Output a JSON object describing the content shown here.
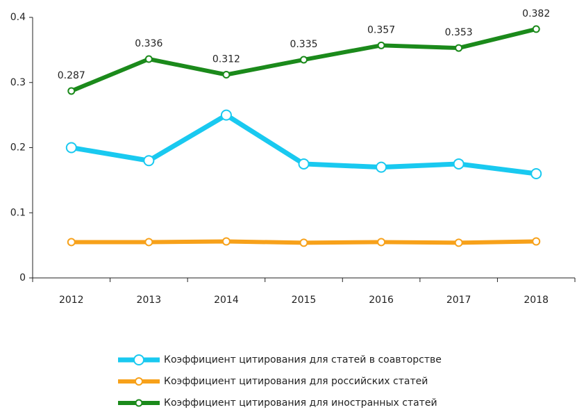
{
  "chart_data": {
    "type": "line",
    "categories": [
      "2012",
      "2013",
      "2014",
      "2015",
      "2016",
      "2017",
      "2018"
    ],
    "series": [
      {
        "name": "Коэффициент цитирования для статей в соавторстве",
        "color": "#19c9f0",
        "values": [
          0.2,
          0.18,
          0.25,
          0.175,
          0.17,
          0.175,
          0.16
        ]
      },
      {
        "name": "Коэффициент цитирования для российских статей",
        "color": "#f7a11a",
        "values": [
          0.055,
          0.055,
          0.056,
          0.054,
          0.055,
          0.054,
          0.056
        ]
      },
      {
        "name": "Коэффициент цитирования для иностранных статей",
        "color": "#1b8a1b",
        "values": [
          0.287,
          0.336,
          0.312,
          0.335,
          0.357,
          0.353,
          0.382
        ],
        "data_labels": true
      }
    ],
    "ylim": [
      0,
      0.4
    ],
    "yticks": [
      0,
      0.1,
      0.2,
      0.3,
      0.4
    ],
    "grid": false,
    "legend": "bottom"
  }
}
